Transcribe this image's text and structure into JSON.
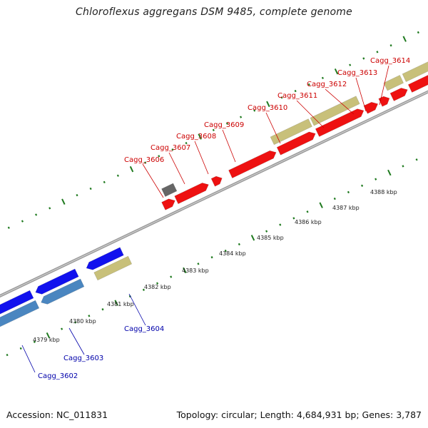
{
  "title": "Chloroflexus aggregans DSM 9485, complete genome",
  "footer": {
    "accession": "Accession: NC_011831",
    "topology": "Topology: circular; Length: 4,684,931 bp; Genes: 3,787"
  },
  "colors": {
    "forward_cds": "#ee1111",
    "reverse_cds": "#1111ee",
    "reverse_cds_light": "#4a86c0",
    "rna_feature": "#c8c07a",
    "misc_feature": "#666666",
    "backbone": "#888888",
    "ticks": "#1f7a1f",
    "label_forward": "#cc0000",
    "label_reverse": "#0000aa"
  },
  "kbp_ticks": [
    "4379 kbp",
    "4380 kbp",
    "4381 kbp",
    "4382 kbp",
    "4383 kbp",
    "4384 kbp",
    "4385 kbp",
    "4386 kbp",
    "4387 kbp",
    "4388 kbp"
  ],
  "gene_labels": {
    "forward": [
      "Cagg_3606",
      "Cagg_3607",
      "Cagg_3608",
      "Cagg_3609",
      "Cagg_3610",
      "Cagg_3611",
      "Cagg_3612",
      "Cagg_3613",
      "Cagg_3614"
    ],
    "reverse": [
      "Cagg_3602",
      "Cagg_3603",
      "Cagg_3604"
    ]
  }
}
